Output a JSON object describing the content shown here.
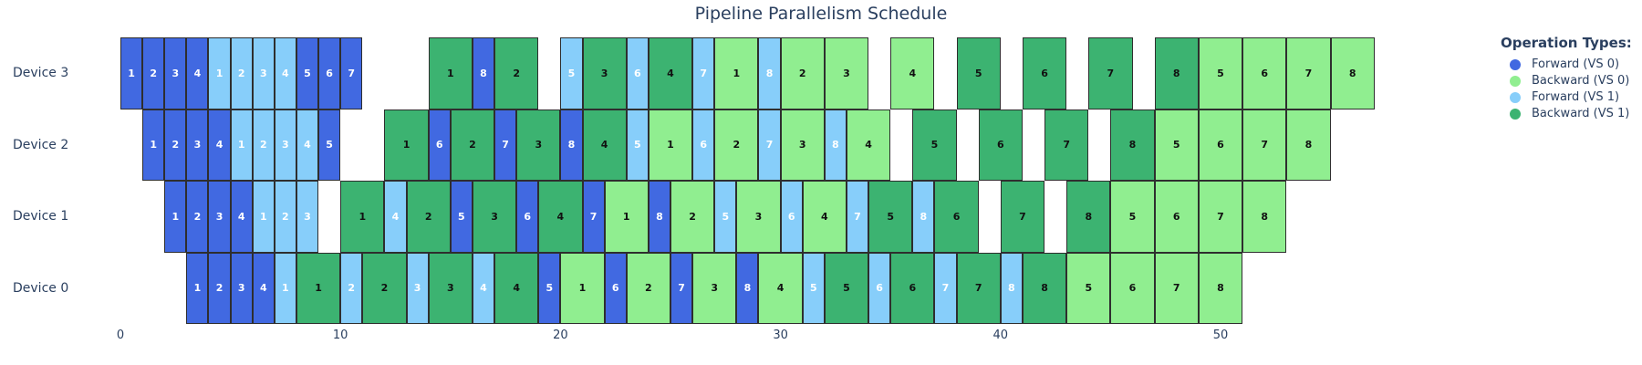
{
  "title": "Pipeline Parallelism Schedule",
  "colors": {
    "f0": "#4169E1",
    "b0": "#90EE90",
    "f1": "#87CEFA",
    "b1": "#3CB371",
    "text_dark": "#2a3f5f",
    "block_border": "#2e2e2e",
    "background": "#ffffff"
  },
  "legend": {
    "title": "Operation Types:",
    "items": [
      {
        "label": "Forward (VS 0)",
        "type": "f0"
      },
      {
        "label": "Backward (VS 0)",
        "type": "b0"
      },
      {
        "label": "Forward (VS 1)",
        "type": "f1"
      },
      {
        "label": "Backward (VS 1)",
        "type": "b1"
      }
    ]
  },
  "chart_data": {
    "type": "gantt",
    "title": "Pipeline Parallelism Schedule",
    "xlabel": "",
    "ylabel": "",
    "x_ticks": [
      0,
      10,
      20,
      30,
      40,
      50
    ],
    "xlim": [
      0,
      58
    ],
    "grid": false,
    "legend_position": "right",
    "operation_durations": {
      "forward": 1,
      "backward": 2
    },
    "block_types": {
      "f0": "Forward (VS 0)",
      "b0": "Backward (VS 0)",
      "f1": "Forward (VS 1)",
      "b1": "Backward (VS 1)"
    },
    "devices": [
      {
        "name": "Device 3",
        "blocks": [
          [
            "f0",
            "1",
            0,
            1
          ],
          [
            "f0",
            "2",
            1,
            1
          ],
          [
            "f0",
            "3",
            2,
            1
          ],
          [
            "f0",
            "4",
            3,
            1
          ],
          [
            "f1",
            "1",
            4,
            1
          ],
          [
            "f1",
            "2",
            5,
            1
          ],
          [
            "f1",
            "3",
            6,
            1
          ],
          [
            "f1",
            "4",
            7,
            1
          ],
          [
            "f0",
            "5",
            8,
            1
          ],
          [
            "f0",
            "6",
            9,
            1
          ],
          [
            "f0",
            "7",
            10,
            1
          ],
          [
            "b1",
            "1",
            14,
            2
          ],
          [
            "f0",
            "8",
            16,
            1
          ],
          [
            "b1",
            "2",
            17,
            2
          ],
          [
            "f1",
            "5",
            20,
            1
          ],
          [
            "b1",
            "3",
            21,
            2
          ],
          [
            "f1",
            "6",
            23,
            1
          ],
          [
            "b1",
            "4",
            24,
            2
          ],
          [
            "f1",
            "7",
            26,
            1
          ],
          [
            "b0",
            "1",
            27,
            2
          ],
          [
            "f1",
            "8",
            29,
            1
          ],
          [
            "b0",
            "2",
            30,
            2
          ],
          [
            "b0",
            "3",
            32,
            2
          ],
          [
            "b0",
            "4",
            35,
            2
          ],
          [
            "b1",
            "5",
            38,
            2
          ],
          [
            "b1",
            "6",
            41,
            2
          ],
          [
            "b1",
            "7",
            44,
            2
          ],
          [
            "b1",
            "8",
            47,
            2
          ],
          [
            "b0",
            "5",
            49,
            2
          ],
          [
            "b0",
            "6",
            51,
            2
          ],
          [
            "b0",
            "7",
            53,
            2
          ],
          [
            "b0",
            "8",
            55,
            2
          ]
        ]
      },
      {
        "name": "Device 2",
        "blocks": [
          [
            "f0",
            "1",
            1,
            1
          ],
          [
            "f0",
            "2",
            2,
            1
          ],
          [
            "f0",
            "3",
            3,
            1
          ],
          [
            "f0",
            "4",
            4,
            1
          ],
          [
            "f1",
            "1",
            5,
            1
          ],
          [
            "f1",
            "2",
            6,
            1
          ],
          [
            "f1",
            "3",
            7,
            1
          ],
          [
            "f1",
            "4",
            8,
            1
          ],
          [
            "f0",
            "5",
            9,
            1
          ],
          [
            "b1",
            "1",
            12,
            2
          ],
          [
            "f0",
            "6",
            14,
            1
          ],
          [
            "b1",
            "2",
            15,
            2
          ],
          [
            "f0",
            "7",
            17,
            1
          ],
          [
            "b1",
            "3",
            18,
            2
          ],
          [
            "f0",
            "8",
            20,
            1
          ],
          [
            "b1",
            "4",
            21,
            2
          ],
          [
            "f1",
            "5",
            23,
            1
          ],
          [
            "b0",
            "1",
            24,
            2
          ],
          [
            "f1",
            "6",
            26,
            1
          ],
          [
            "b0",
            "2",
            27,
            2
          ],
          [
            "f1",
            "7",
            29,
            1
          ],
          [
            "b0",
            "3",
            30,
            2
          ],
          [
            "f1",
            "8",
            32,
            1
          ],
          [
            "b0",
            "4",
            33,
            2
          ],
          [
            "b1",
            "5",
            36,
            2
          ],
          [
            "b1",
            "6",
            39,
            2
          ],
          [
            "b1",
            "7",
            42,
            2
          ],
          [
            "b1",
            "8",
            45,
            2
          ],
          [
            "b0",
            "5",
            47,
            2
          ],
          [
            "b0",
            "6",
            49,
            2
          ],
          [
            "b0",
            "7",
            51,
            2
          ],
          [
            "b0",
            "8",
            53,
            2
          ]
        ]
      },
      {
        "name": "Device 1",
        "blocks": [
          [
            "f0",
            "1",
            2,
            1
          ],
          [
            "f0",
            "2",
            3,
            1
          ],
          [
            "f0",
            "3",
            4,
            1
          ],
          [
            "f0",
            "4",
            5,
            1
          ],
          [
            "f1",
            "1",
            6,
            1
          ],
          [
            "f1",
            "2",
            7,
            1
          ],
          [
            "f1",
            "3",
            8,
            1
          ],
          [
            "b1",
            "1",
            10,
            2
          ],
          [
            "f1",
            "4",
            12,
            1
          ],
          [
            "b1",
            "2",
            13,
            2
          ],
          [
            "f0",
            "5",
            15,
            1
          ],
          [
            "b1",
            "3",
            16,
            2
          ],
          [
            "f0",
            "6",
            18,
            1
          ],
          [
            "b1",
            "4",
            19,
            2
          ],
          [
            "f0",
            "7",
            21,
            1
          ],
          [
            "b0",
            "1",
            22,
            2
          ],
          [
            "f0",
            "8",
            24,
            1
          ],
          [
            "b0",
            "2",
            25,
            2
          ],
          [
            "f1",
            "5",
            27,
            1
          ],
          [
            "b0",
            "3",
            28,
            2
          ],
          [
            "f1",
            "6",
            30,
            1
          ],
          [
            "b0",
            "4",
            31,
            2
          ],
          [
            "f1",
            "7",
            33,
            1
          ],
          [
            "b1",
            "5",
            34,
            2
          ],
          [
            "f1",
            "8",
            36,
            1
          ],
          [
            "b1",
            "6",
            37,
            2
          ],
          [
            "b1",
            "7",
            40,
            2
          ],
          [
            "b1",
            "8",
            43,
            2
          ],
          [
            "b0",
            "5",
            45,
            2
          ],
          [
            "b0",
            "6",
            47,
            2
          ],
          [
            "b0",
            "7",
            49,
            2
          ],
          [
            "b0",
            "8",
            51,
            2
          ]
        ]
      },
      {
        "name": "Device 0",
        "blocks": [
          [
            "f0",
            "1",
            3,
            1
          ],
          [
            "f0",
            "2",
            4,
            1
          ],
          [
            "f0",
            "3",
            5,
            1
          ],
          [
            "f0",
            "4",
            6,
            1
          ],
          [
            "f1",
            "1",
            7,
            1
          ],
          [
            "b1",
            "1",
            8,
            2
          ],
          [
            "f1",
            "2",
            10,
            1
          ],
          [
            "b1",
            "2",
            11,
            2
          ],
          [
            "f1",
            "3",
            13,
            1
          ],
          [
            "b1",
            "3",
            14,
            2
          ],
          [
            "f1",
            "4",
            16,
            1
          ],
          [
            "b1",
            "4",
            17,
            2
          ],
          [
            "f0",
            "5",
            19,
            1
          ],
          [
            "b0",
            "1",
            20,
            2
          ],
          [
            "f0",
            "6",
            22,
            1
          ],
          [
            "b0",
            "2",
            23,
            2
          ],
          [
            "f0",
            "7",
            25,
            1
          ],
          [
            "b0",
            "3",
            26,
            2
          ],
          [
            "f0",
            "8",
            28,
            1
          ],
          [
            "b0",
            "4",
            29,
            2
          ],
          [
            "f1",
            "5",
            31,
            1
          ],
          [
            "b1",
            "5",
            32,
            2
          ],
          [
            "f1",
            "6",
            34,
            1
          ],
          [
            "b1",
            "6",
            35,
            2
          ],
          [
            "f1",
            "7",
            37,
            1
          ],
          [
            "b1",
            "7",
            38,
            2
          ],
          [
            "f1",
            "8",
            40,
            1
          ],
          [
            "b1",
            "8",
            41,
            2
          ],
          [
            "b0",
            "5",
            43,
            2
          ],
          [
            "b0",
            "6",
            45,
            2
          ],
          [
            "b0",
            "7",
            47,
            2
          ],
          [
            "b0",
            "8",
            49,
            2
          ]
        ]
      }
    ]
  }
}
